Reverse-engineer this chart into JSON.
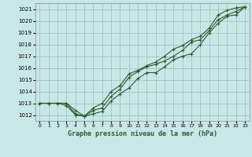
{
  "title": "Graphe pression niveau de la mer (hPa)",
  "bg_color": "#c8e8e8",
  "grid_color": "#9bbcbc",
  "line_color": "#2d5a2d",
  "xmin": -0.5,
  "xmax": 23.5,
  "ymin": 1011.5,
  "ymax": 1021.5,
  "yticks": [
    1012,
    1013,
    1014,
    1015,
    1016,
    1017,
    1018,
    1019,
    1020,
    1021
  ],
  "xticks": [
    0,
    1,
    2,
    3,
    4,
    5,
    6,
    7,
    8,
    9,
    10,
    11,
    12,
    13,
    14,
    15,
    16,
    17,
    18,
    19,
    20,
    21,
    22,
    23
  ],
  "line1_x": [
    0,
    1,
    2,
    3,
    4,
    5,
    6,
    7,
    8,
    9,
    10,
    11,
    12,
    13,
    14,
    15,
    16,
    17,
    18,
    19,
    20,
    21,
    22,
    23
  ],
  "line1_y": [
    1013.0,
    1013.0,
    1013.0,
    1013.0,
    1012.4,
    1011.9,
    1012.1,
    1012.3,
    1013.2,
    1013.8,
    1014.3,
    1015.1,
    1015.6,
    1015.6,
    1016.1,
    1016.7,
    1017.0,
    1017.2,
    1018.0,
    1019.0,
    1019.8,
    1020.4,
    1020.5,
    1021.2
  ],
  "line2_x": [
    0,
    1,
    2,
    3,
    4,
    5,
    6,
    7,
    8,
    9,
    10,
    11,
    12,
    13,
    14,
    15,
    16,
    17,
    18,
    19,
    20,
    21,
    22,
    23
  ],
  "line2_y": [
    1013.0,
    1013.0,
    1013.0,
    1012.8,
    1012.0,
    1011.9,
    1012.4,
    1012.6,
    1013.6,
    1014.2,
    1015.2,
    1015.7,
    1016.1,
    1016.3,
    1016.6,
    1017.0,
    1017.5,
    1018.2,
    1018.4,
    1019.2,
    1020.1,
    1020.5,
    1020.8,
    1021.2
  ],
  "line3_x": [
    0,
    1,
    2,
    3,
    4,
    5,
    6,
    7,
    8,
    9,
    10,
    11,
    12,
    13,
    14,
    15,
    16,
    17,
    18,
    19,
    20,
    21,
    22,
    23
  ],
  "line3_y": [
    1013.0,
    1013.0,
    1013.0,
    1013.0,
    1012.1,
    1011.9,
    1012.6,
    1013.0,
    1014.0,
    1014.5,
    1015.5,
    1015.8,
    1016.2,
    1016.5,
    1017.0,
    1017.6,
    1017.9,
    1018.4,
    1018.7,
    1019.4,
    1020.5,
    1020.9,
    1021.1,
    1021.2
  ],
  "title_fontsize": 6,
  "tick_fontsize": 5,
  "line_width": 0.8,
  "marker_size": 3
}
